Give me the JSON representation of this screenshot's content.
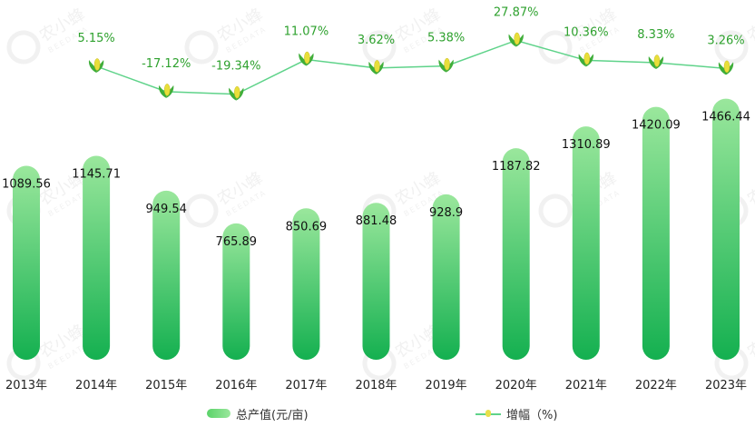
{
  "chart_data": {
    "type": "bar",
    "categories": [
      "2013年",
      "2014年",
      "2015年",
      "2016年",
      "2017年",
      "2018年",
      "2019年",
      "2020年",
      "2021年",
      "2022年",
      "2023年"
    ],
    "series": [
      {
        "name": "总产值(元/亩)",
        "type": "bar",
        "values": [
          1089.56,
          1145.71,
          949.54,
          765.89,
          850.69,
          881.48,
          928.9,
          1187.82,
          1310.89,
          1420.09,
          1466.44
        ],
        "labels": [
          "1089.56",
          "1145.71",
          "949.54",
          "765.89",
          "850.69",
          "881.48",
          "928.9",
          "1187.82",
          "1310.89",
          "1420.09",
          "1466.44"
        ]
      },
      {
        "name": "增幅（%)",
        "type": "line",
        "values": [
          null,
          5.15,
          -17.12,
          -19.34,
          11.07,
          3.62,
          5.38,
          27.87,
          10.36,
          8.33,
          3.26
        ],
        "labels": [
          "",
          "5.15%",
          "-17.12%",
          "-19.34%",
          "11.07%",
          "3.62%",
          "5.38%",
          "27.87%",
          "10.36%",
          "8.33%",
          "3.26%"
        ]
      }
    ],
    "legend_position": "bottom",
    "grid": false,
    "colors": {
      "bar_top": "#9ae79c",
      "bar_bottom": "#14b050",
      "line": "#5fd38a",
      "growth_label": "#2ea12e",
      "value_label": "#111111"
    },
    "watermark": "农小蜂 BEEDATA"
  }
}
